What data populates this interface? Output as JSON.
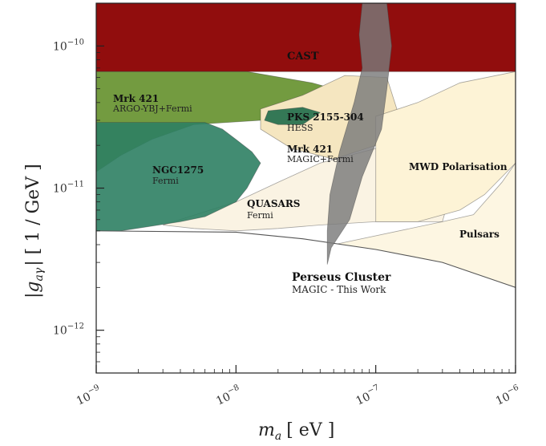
{
  "chart_data": {
    "type": "area",
    "xlabel_main": "m",
    "xlabel_sub": "a",
    "xlabel_unit": "[ eV ]",
    "ylabel_main": "|g",
    "ylabel_sub": "aγ",
    "ylabel_unit": "| [ 1 / GeV ]",
    "x_scale": "log",
    "y_scale": "log",
    "xlim": [
      1e-09,
      1e-06
    ],
    "ylim": [
      5e-13,
      2e-10
    ],
    "x_ticks": [
      {
        "base": "10",
        "exp": "−9",
        "value": 1e-09
      },
      {
        "base": "10",
        "exp": "−8",
        "value": 1e-08
      },
      {
        "base": "10",
        "exp": "−7",
        "value": 1e-07
      },
      {
        "base": "10",
        "exp": "−6",
        "value": 1e-06
      }
    ],
    "y_ticks": [
      {
        "base": "10",
        "exp": "−12",
        "value": 1e-12
      },
      {
        "base": "10",
        "exp": "−11",
        "value": 1e-11
      },
      {
        "base": "10",
        "exp": "−10",
        "value": 1e-10
      }
    ],
    "regions": [
      {
        "id": "cast",
        "color": "#8b0000",
        "label": "CAST",
        "points": [
          [
            1e-09,
            2e-10
          ],
          [
            1e-06,
            2e-10
          ],
          [
            1e-06,
            6.6e-11
          ],
          [
            1e-09,
            6.6e-11
          ]
        ]
      },
      {
        "id": "mrk421-argo",
        "color": "#5a8a1e",
        "label": "Mrk 421",
        "sublabel": "ARGO-YBJ+Fermi",
        "points": [
          [
            1e-09,
            6.6e-11
          ],
          [
            1.2e-08,
            6.6e-11
          ],
          [
            3.5e-08,
            5.5e-11
          ],
          [
            5e-08,
            5e-11
          ],
          [
            1.5e-08,
            3e-11
          ],
          [
            5e-09,
            2.8e-11
          ],
          [
            2.5e-09,
            2.2e-11
          ],
          [
            1.5e-09,
            1.7e-11
          ],
          [
            1e-09,
            1.3e-11
          ]
        ]
      },
      {
        "id": "mrk421-magic",
        "color": "#f5e6c0",
        "label": "Mrk 421",
        "sublabel": "MAGIC+Fermi",
        "points": [
          [
            1.5e-08,
            3.6e-11
          ],
          [
            3e-08,
            4.5e-11
          ],
          [
            6e-08,
            6.2e-11
          ],
          [
            1.2e-07,
            6e-11
          ],
          [
            1.5e-07,
            3e-11
          ],
          [
            1e-07,
            2e-11
          ],
          [
            5e-08,
            1.6e-11
          ],
          [
            2.5e-08,
            1.9e-11
          ],
          [
            1.5e-08,
            2.6e-11
          ]
        ]
      },
      {
        "id": "quasars",
        "color": "#faf3e3",
        "label": "QUASARS",
        "sublabel": "Fermi",
        "points": [
          [
            3e-09,
            5.5e-12
          ],
          [
            5e-09,
            5.2e-12
          ],
          [
            1e-08,
            5e-12
          ],
          [
            2e-08,
            5.2e-12
          ],
          [
            4e-08,
            5.5e-12
          ],
          [
            1e-07,
            5.8e-12
          ],
          [
            3e-07,
            5.8e-12
          ],
          [
            3.5e-07,
            1e-11
          ],
          [
            3.8e-07,
            3e-11
          ],
          [
            2.5e-07,
            2.2e-11
          ],
          [
            1e-07,
            1.9e-11
          ],
          [
            4e-08,
            1.5e-11
          ],
          [
            2e-08,
            1.1e-11
          ],
          [
            1e-08,
            8e-12
          ]
        ]
      },
      {
        "id": "mwd-polarisation",
        "color": "#fdf3d6",
        "label": "MWD Polarisation",
        "points": [
          [
            1e-07,
            3.2e-11
          ],
          [
            2e-07,
            4e-11
          ],
          [
            4e-07,
            5.5e-11
          ],
          [
            1e-06,
            6.6e-11
          ],
          [
            1e-06,
            1.5e-11
          ],
          [
            6e-07,
            9e-12
          ],
          [
            4e-07,
            7e-12
          ],
          [
            2e-07,
            5.8e-12
          ],
          [
            1e-07,
            5.8e-12
          ]
        ]
      },
      {
        "id": "pulsars",
        "color": "#fdf6e2",
        "label": "Pulsars",
        "points": [
          [
            3e-07,
            5.8e-12
          ],
          [
            5e-07,
            6.5e-12
          ],
          [
            8e-07,
            1.1e-11
          ],
          [
            1e-06,
            1.5e-11
          ],
          [
            1e-06,
            2e-12
          ],
          [
            5e-07,
            2.5e-12
          ],
          [
            2e-07,
            3.2e-12
          ],
          [
            1e-07,
            3.5e-12
          ],
          [
            5e-08,
            4e-12
          ]
        ]
      },
      {
        "id": "ngc1275",
        "color": "#2e7f63",
        "label": "NGC1275",
        "sublabel": "Fermi",
        "points": [
          [
            1e-09,
            4.8e-12
          ],
          [
            1.5e-09,
            5e-12
          ],
          [
            2.5e-09,
            5.4e-12
          ],
          [
            4e-09,
            5.8e-12
          ],
          [
            6e-09,
            6.3e-12
          ],
          [
            8e-09,
            7.2e-12
          ],
          [
            1e-08,
            8e-12
          ],
          [
            1.2e-08,
            1e-11
          ],
          [
            1.5e-08,
            1.5e-11
          ],
          [
            1.3e-08,
            1.8e-11
          ],
          [
            1e-08,
            2.2e-11
          ],
          [
            8e-09,
            2.6e-11
          ],
          [
            6e-09,
            2.9e-11
          ],
          [
            4e-09,
            2.9e-11
          ],
          [
            2.5e-09,
            2.9e-11
          ],
          [
            1.5e-09,
            2.9e-11
          ],
          [
            1e-09,
            2.9e-11
          ]
        ]
      },
      {
        "id": "pks2155",
        "color": "#1f6b4a",
        "label": "PKS 2155-304",
        "sublabel": "HESS",
        "points": [
          [
            1.7e-08,
            3.5e-11
          ],
          [
            3e-08,
            3.7e-11
          ],
          [
            4e-08,
            3.4e-11
          ],
          [
            3e-08,
            2.8e-11
          ],
          [
            2e-08,
            2.8e-11
          ],
          [
            1.6e-08,
            3e-11
          ]
        ]
      },
      {
        "id": "perseus-magic",
        "color": "#ffffff",
        "label": "Perseus Cluster",
        "sublabel": "MAGIC - This Work",
        "points": [
          [
            1e-09,
            5e-12
          ],
          [
            1e-08,
            4.9e-12
          ],
          [
            3e-08,
            4.4e-12
          ],
          [
            1e-07,
            3.7e-12
          ],
          [
            3e-07,
            3e-12
          ],
          [
            1e-06,
            2e-12
          ]
        ]
      },
      {
        "id": "gray-band",
        "color": "#7a7a7a",
        "points": [
          [
            8e-08,
            2e-10
          ],
          [
            1.2e-07,
            2e-10
          ],
          [
            1.3e-07,
            1e-10
          ],
          [
            1.2e-07,
            5e-11
          ],
          [
            1.1e-07,
            2.6e-11
          ],
          [
            8e-08,
            1.2e-11
          ],
          [
            6.5e-08,
            6e-12
          ],
          [
            4.8e-08,
            3.8e-12
          ],
          [
            4.5e-08,
            2.9e-12
          ],
          [
            4.5e-08,
            5e-12
          ],
          [
            4.7e-08,
            9e-12
          ],
          [
            5.5e-08,
            1.8e-11
          ],
          [
            7e-08,
            4e-11
          ],
          [
            8e-08,
            7e-11
          ],
          [
            7.6e-08,
            1.2e-10
          ]
        ]
      }
    ]
  }
}
